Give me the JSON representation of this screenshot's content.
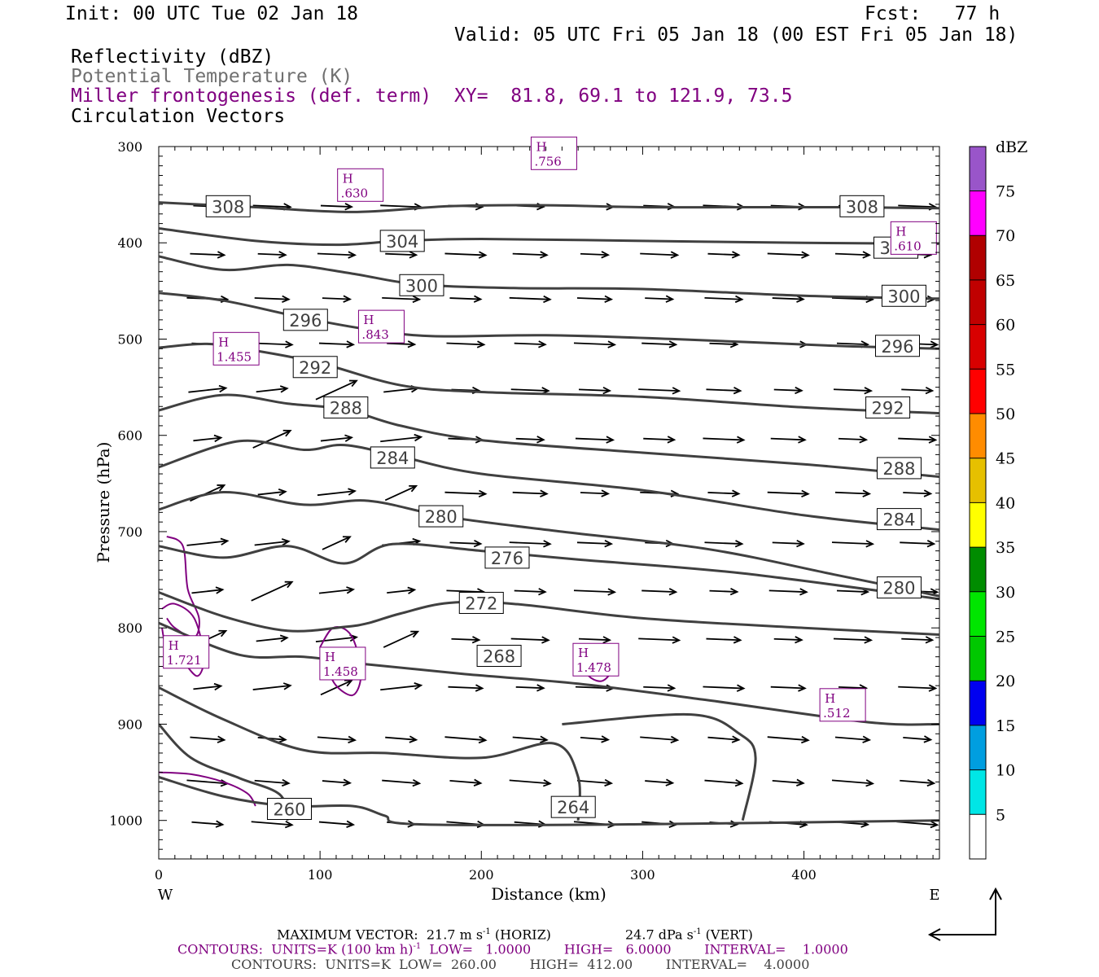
{
  "header": {
    "init": "Init: 00 UTC Tue 02 Jan 18",
    "fcst": "Fcst:   77 h",
    "valid": "Valid: 05 UTC Fri 05 Jan 18 (00 EST Fri 05 Jan 18)",
    "field1": "Reflectivity (dBZ)",
    "field2": "Potential Temperature (K)",
    "field3": "Miller frontogenesis (def. term)",
    "field4": "Circulation Vectors",
    "xy": "XY=  81.8, 69.1 to 121.9, 73.5"
  },
  "chart_data": {
    "type": "line",
    "xlabel": "Distance (km)",
    "ylabel": "Pressure (hPa)",
    "xlim": [
      0,
      484
    ],
    "ylim": [
      1040,
      300
    ],
    "x_ticks": [
      "0",
      "100",
      "200",
      "300",
      "400"
    ],
    "y_ticks": [
      "300",
      "400",
      "500",
      "600",
      "700",
      "800",
      "900",
      "1000"
    ],
    "x_end_labels": {
      "left": "W",
      "right": "E"
    },
    "theta_contours": [
      {
        "label": "308",
        "points": [
          [
            0,
            358
          ],
          [
            60,
            363
          ],
          [
            120,
            368
          ],
          [
            180,
            362
          ],
          [
            240,
            361
          ],
          [
            300,
            363
          ],
          [
            360,
            363
          ],
          [
            420,
            363
          ],
          [
            484,
            364
          ]
        ],
        "label_at": [
          [
            43,
            362
          ],
          [
            436,
            362
          ]
        ]
      },
      {
        "label": "304",
        "points": [
          [
            0,
            385
          ],
          [
            60,
            398
          ],
          [
            110,
            402
          ],
          [
            150,
            398
          ],
          [
            200,
            396
          ],
          [
            300,
            398
          ],
          [
            400,
            400
          ],
          [
            484,
            401
          ]
        ],
        "label_at": [
          [
            151,
            398
          ],
          [
            457,
            405
          ]
        ]
      },
      {
        "label": "300",
        "points": [
          [
            0,
            414
          ],
          [
            40,
            428
          ],
          [
            80,
            423
          ],
          [
            120,
            432
          ],
          [
            160,
            443
          ],
          [
            220,
            447
          ],
          [
            300,
            448
          ],
          [
            400,
            455
          ],
          [
            484,
            458
          ]
        ],
        "label_at": [
          [
            163,
            444
          ],
          [
            462,
            455
          ]
        ]
      },
      {
        "label": "296",
        "points": [
          [
            0,
            452
          ],
          [
            40,
            460
          ],
          [
            90,
            478
          ],
          [
            130,
            490
          ],
          [
            170,
            497
          ],
          [
            240,
            496
          ],
          [
            320,
            500
          ],
          [
            420,
            507
          ],
          [
            484,
            510
          ]
        ],
        "label_at": [
          [
            91,
            480
          ],
          [
            458,
            507
          ]
        ]
      },
      {
        "label": "292",
        "points": [
          [
            0,
            509
          ],
          [
            30,
            505
          ],
          [
            60,
            512
          ],
          [
            100,
            525
          ],
          [
            150,
            548
          ],
          [
            200,
            555
          ],
          [
            300,
            560
          ],
          [
            400,
            571
          ],
          [
            484,
            577
          ]
        ],
        "label_at": [
          [
            97,
            529
          ],
          [
            452,
            571
          ]
        ]
      },
      {
        "label": "288",
        "points": [
          [
            0,
            574
          ],
          [
            40,
            558
          ],
          [
            80,
            567
          ],
          [
            115,
            573
          ],
          [
            150,
            590
          ],
          [
            200,
            605
          ],
          [
            300,
            618
          ],
          [
            400,
            630
          ],
          [
            484,
            643
          ]
        ],
        "label_at": [
          [
            116,
            571
          ],
          [
            459,
            634
          ]
        ]
      },
      {
        "label": "284",
        "points": [
          [
            0,
            633
          ],
          [
            50,
            606
          ],
          [
            90,
            615
          ],
          [
            115,
            610
          ],
          [
            150,
            622
          ],
          [
            200,
            640
          ],
          [
            300,
            657
          ],
          [
            400,
            683
          ],
          [
            484,
            698
          ]
        ],
        "label_at": [
          [
            145,
            623
          ],
          [
            459,
            687
          ]
        ]
      },
      {
        "label": "280",
        "points": [
          [
            0,
            677
          ],
          [
            40,
            659
          ],
          [
            90,
            672
          ],
          [
            130,
            668
          ],
          [
            180,
            685
          ],
          [
            250,
            700
          ],
          [
            340,
            718
          ],
          [
            420,
            745
          ],
          [
            484,
            767
          ]
        ],
        "label_at": [
          [
            175,
            684
          ],
          [
            459,
            758
          ]
        ]
      },
      {
        "label": "276",
        "points": [
          [
            0,
            715
          ],
          [
            40,
            727
          ],
          [
            80,
            715
          ],
          [
            115,
            733
          ],
          [
            145,
            713
          ],
          [
            200,
            720
          ],
          [
            260,
            729
          ],
          [
            360,
            743
          ],
          [
            484,
            770
          ]
        ],
        "label_at": [
          [
            216,
            727
          ]
        ]
      },
      {
        "label": "272",
        "points": [
          [
            0,
            763
          ],
          [
            40,
            788
          ],
          [
            80,
            803
          ],
          [
            115,
            799
          ],
          [
            130,
            795
          ],
          [
            150,
            785
          ],
          [
            180,
            774
          ],
          [
            220,
            775
          ],
          [
            300,
            790
          ],
          [
            400,
            800
          ],
          [
            484,
            807
          ]
        ],
        "label_at": [
          [
            200,
            774
          ]
        ]
      },
      {
        "label": "268",
        "points": [
          [
            0,
            795
          ],
          [
            50,
            828
          ],
          [
            90,
            830
          ],
          [
            130,
            838
          ],
          [
            190,
            848
          ],
          [
            260,
            858
          ],
          [
            340,
            875
          ],
          [
            440,
            898
          ],
          [
            484,
            900
          ]
        ],
        "label_at": [
          [
            211,
            829
          ]
        ]
      },
      {
        "label": "264",
        "points": [
          [
            0,
            862
          ],
          [
            40,
            895
          ],
          [
            90,
            927
          ],
          [
            140,
            930
          ],
          [
            200,
            935
          ],
          [
            245,
            920
          ],
          [
            260,
            955
          ],
          [
            260,
            1000
          ]
        ],
        "label_at": [
          [
            257,
            986
          ]
        ]
      },
      {
        "label": "260",
        "points": [
          [
            0,
            900
          ],
          [
            20,
            935
          ],
          [
            50,
            956
          ],
          [
            75,
            973
          ],
          [
            80,
            1000
          ]
        ],
        "label_at": [
          [
            81,
            988
          ]
        ]
      },
      {
        "label": "",
        "points": [
          [
            250,
            900
          ],
          [
            330,
            890
          ],
          [
            360,
            910
          ],
          [
            370,
            935
          ],
          [
            362,
            1000
          ]
        ],
        "label_at": []
      },
      {
        "label": "",
        "points": [
          [
            0,
            955
          ],
          [
            40,
            975
          ],
          [
            80,
            985
          ],
          [
            120,
            985
          ],
          [
            140,
            995
          ],
          [
            160,
            1004
          ],
          [
            300,
            1004
          ],
          [
            484,
            1000
          ]
        ],
        "label_at": []
      }
    ],
    "frontogenesis_maxima": [
      {
        "label": ".756",
        "x": 245,
        "p": 307
      },
      {
        "label": ".630",
        "x": 125,
        "p": 340
      },
      {
        "label": ".610",
        "x": 468,
        "p": 395
      },
      {
        "label": ".843",
        "x": 138,
        "p": 487
      },
      {
        "label": "1.455",
        "x": 48,
        "p": 510
      },
      {
        "label": "1.721",
        "x": 17,
        "p": 825
      },
      {
        "label": "1.458",
        "x": 114,
        "p": 837
      },
      {
        "label": "1.478",
        "x": 271,
        "p": 833
      },
      {
        "label": ".512",
        "x": 424,
        "p": 880
      }
    ],
    "colorbar": {
      "title": "dBZ",
      "levels": [
        "5",
        "10",
        "15",
        "20",
        "25",
        "30",
        "35",
        "40",
        "45",
        "50",
        "55",
        "60",
        "65",
        "70",
        "75"
      ],
      "colors": [
        "#00e6e6",
        "#009ee0",
        "#0000f0",
        "#00c800",
        "#00e600",
        "#008c00",
        "#ffff00",
        "#e6c000",
        "#ff8c00",
        "#ff0000",
        "#d80000",
        "#c00000",
        "#b00000",
        "#ff00ff",
        "#9955c9"
      ]
    }
  },
  "footer": {
    "max_vector": "MAXIMUM VECTOR:  21.7 m s",
    "max_vector_sup": "-1",
    "horiz": " (HORIZ)",
    "vert": "24.7 dPa s",
    "vert_sup": "-1",
    "vert_tail": " (VERT)",
    "contours1": "CONTOURS:  UNITS=K (100 km h)",
    "contours1_sup": "-1",
    "contours1_tail": "  LOW=   1.0000        HIGH=   6.0000        INTERVAL=    1.0000",
    "contours2": "CONTOURS:  UNITS=K  LOW=  260.00        HIGH=  412.00        INTERVAL=    4.0000"
  }
}
